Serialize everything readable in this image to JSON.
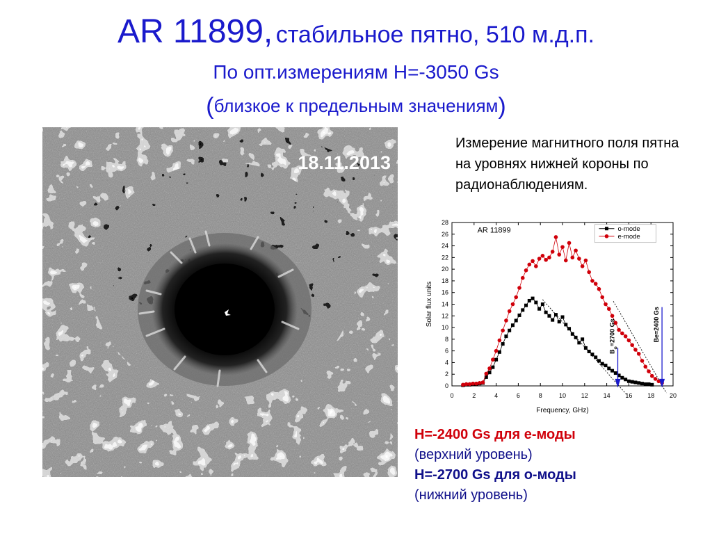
{
  "title": {
    "main": "AR 11899,",
    "subtitle": "стабильное пятно, 510 м.д.п.",
    "line2": "По опт.измерениям Н=-3050 Gs",
    "line3_open": "(",
    "line3": "близкое к предельным значениям",
    "line3_close": ")"
  },
  "image": {
    "date": "18.11.2013"
  },
  "description": "Измерение магнитного поля пятна на уровнях нижней короны по радионаблюдениям.",
  "conclusions": {
    "e_mode": "Н=-2400 Gs для е-моды",
    "e_mode_note": "(верхний уровень)",
    "o_mode": "Н=-2700 Gs для о-моды",
    "o_mode_note": "(нижний уровень)"
  },
  "colors": {
    "title": "#1a1acc",
    "e_mode": "#d0000a",
    "o_mode": "#10108a",
    "arrow": "#1a1acc"
  },
  "chart_data": {
    "type": "line",
    "annotation": "AR 11899",
    "xlabel": "Frequency, GHz)",
    "ylabel": "Solar flux units",
    "xlim": [
      0,
      20
    ],
    "ylim": [
      0,
      28
    ],
    "xticks": [
      0,
      2,
      4,
      6,
      8,
      10,
      12,
      14,
      16,
      18,
      20
    ],
    "yticks": [
      0,
      2,
      4,
      6,
      8,
      10,
      12,
      14,
      16,
      18,
      20,
      22,
      24,
      26,
      28
    ],
    "grid": false,
    "legend_position": "top-right",
    "series": [
      {
        "name": "o-mode",
        "color": "#000000",
        "marker": "square",
        "x": [
          1.0,
          1.3,
          1.6,
          1.9,
          2.2,
          2.5,
          2.8,
          3.1,
          3.4,
          3.7,
          4.0,
          4.3,
          4.6,
          4.9,
          5.2,
          5.5,
          5.8,
          6.1,
          6.4,
          6.7,
          7.0,
          7.3,
          7.6,
          7.9,
          8.2,
          8.5,
          8.8,
          9.1,
          9.4,
          9.7,
          10.0,
          10.3,
          10.6,
          10.9,
          11.2,
          11.5,
          11.8,
          12.1,
          12.4,
          12.7,
          13.0,
          13.3,
          13.6,
          13.9,
          14.2,
          14.5,
          14.8,
          15.1,
          15.4,
          15.7,
          16.0,
          16.3,
          16.6,
          16.9,
          17.2,
          17.5,
          17.8,
          18.1
        ],
        "y": [
          0.1,
          0.2,
          0.2,
          0.3,
          0.3,
          0.4,
          0.5,
          1.5,
          2.3,
          3.2,
          4.5,
          5.8,
          7.2,
          8.5,
          9.5,
          10.4,
          11.2,
          12.1,
          13.0,
          13.8,
          14.6,
          15.0,
          14.3,
          13.2,
          14.0,
          12.6,
          12.0,
          11.3,
          12.2,
          11.0,
          11.8,
          10.5,
          9.8,
          8.9,
          8.3,
          7.4,
          8.0,
          6.5,
          5.9,
          5.4,
          4.9,
          4.3,
          3.8,
          3.5,
          3.0,
          2.6,
          2.2,
          1.8,
          1.4,
          1.1,
          0.8,
          0.7,
          0.6,
          0.5,
          0.4,
          0.3,
          0.3,
          0.2
        ]
      },
      {
        "name": "e-mode",
        "color": "#d0000a",
        "marker": "circle",
        "x": [
          1.0,
          1.3,
          1.6,
          1.9,
          2.2,
          2.5,
          2.8,
          3.1,
          3.4,
          3.7,
          4.0,
          4.3,
          4.6,
          4.9,
          5.2,
          5.5,
          5.8,
          6.1,
          6.4,
          6.7,
          7.0,
          7.3,
          7.6,
          7.9,
          8.2,
          8.5,
          8.8,
          9.1,
          9.4,
          9.7,
          10.0,
          10.3,
          10.6,
          10.9,
          11.2,
          11.5,
          11.8,
          12.1,
          12.4,
          12.7,
          13.0,
          13.3,
          13.6,
          13.9,
          14.2,
          14.5,
          14.8,
          15.1,
          15.4,
          15.7,
          16.0,
          16.3,
          16.6,
          16.9,
          17.2,
          17.5,
          17.8,
          18.1,
          18.4,
          18.7,
          19.0
        ],
        "y": [
          0.2,
          0.3,
          0.3,
          0.4,
          0.4,
          0.5,
          0.6,
          2.1,
          3.0,
          4.5,
          6.0,
          7.8,
          9.5,
          11.2,
          12.8,
          14.0,
          15.2,
          16.8,
          18.5,
          19.8,
          20.8,
          21.4,
          20.5,
          21.8,
          22.3,
          21.6,
          22.0,
          23.0,
          25.5,
          22.5,
          23.8,
          21.5,
          24.5,
          22.0,
          23.2,
          21.8,
          20.5,
          21.5,
          19.5,
          18.0,
          17.5,
          16.6,
          15.2,
          14.0,
          13.2,
          12.0,
          10.8,
          9.6,
          9.0,
          8.5,
          7.8,
          7.0,
          6.2,
          5.5,
          4.3,
          3.3,
          2.5,
          1.7,
          1.2,
          0.8,
          0.5
        ]
      }
    ],
    "markers": [
      {
        "label": "Bo=2700 Gs",
        "label_main": "B",
        "label_sub": "o",
        "label_rest": "=2700 Gs",
        "x": 15.0
      },
      {
        "label": "Be=2400 Gs",
        "x": 19.0
      }
    ]
  }
}
